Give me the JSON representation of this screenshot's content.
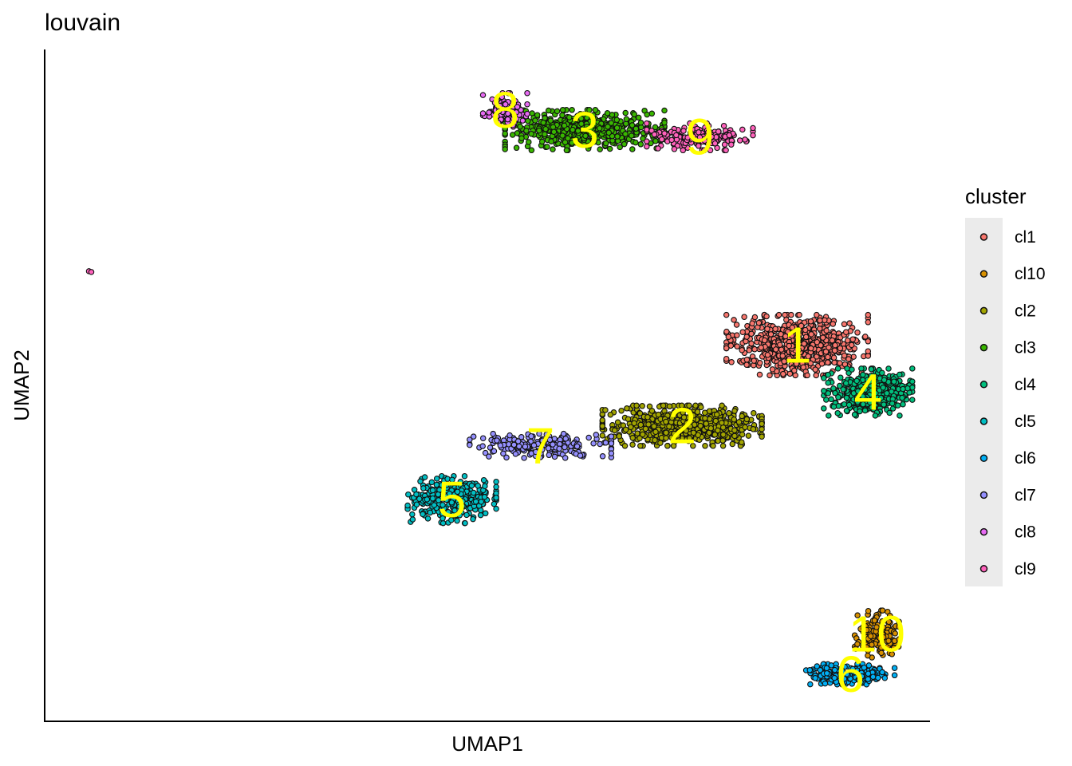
{
  "chart_data": {
    "type": "scatter",
    "title": "louvain",
    "xlabel": "UMAP1",
    "ylabel": "UMAP2",
    "xlim": [
      0,
      100
    ],
    "ylim": [
      0,
      100
    ],
    "grid": false,
    "legend": {
      "title": "cluster",
      "placement": "right",
      "entries": [
        {
          "name": "cl1",
          "color": "#F8766D"
        },
        {
          "name": "cl10",
          "color": "#D89000"
        },
        {
          "name": "cl2",
          "color": "#A3A500"
        },
        {
          "name": "cl3",
          "color": "#39B600"
        },
        {
          "name": "cl4",
          "color": "#00BF7D"
        },
        {
          "name": "cl5",
          "color": "#00BFC4"
        },
        {
          "name": "cl6",
          "color": "#00B0F6"
        },
        {
          "name": "cl7",
          "color": "#9590FF"
        },
        {
          "name": "cl8",
          "color": "#E76BF3"
        },
        {
          "name": "cl9",
          "color": "#FF62BC"
        }
      ]
    },
    "clusters": [
      {
        "name": "cl1",
        "label": "1",
        "color": "#F8766D",
        "center": [
          85,
          56
        ],
        "spread": [
          8,
          4.5
        ],
        "n": 700
      },
      {
        "name": "cl2",
        "label": "2",
        "color": "#A3A500",
        "center": [
          72,
          44
        ],
        "spread": [
          9,
          3
        ],
        "n": 650
      },
      {
        "name": "cl3",
        "label": "3",
        "color": "#39B600",
        "center": [
          61,
          88
        ],
        "spread": [
          9,
          3
        ],
        "n": 550
      },
      {
        "name": "cl4",
        "label": "4",
        "color": "#00BF7D",
        "center": [
          93,
          49
        ],
        "spread": [
          5,
          3.5
        ],
        "n": 420
      },
      {
        "name": "cl5",
        "label": "5",
        "color": "#00BFC4",
        "center": [
          46,
          33
        ],
        "spread": [
          5,
          3.5
        ],
        "n": 330
      },
      {
        "name": "cl6",
        "label": "6",
        "color": "#00B0F6",
        "center": [
          91,
          7
        ],
        "spread": [
          5,
          1.5
        ],
        "n": 260
      },
      {
        "name": "cl7",
        "label": "7",
        "color": "#9590FF",
        "center": [
          56,
          41
        ],
        "spread": [
          8,
          1.8
        ],
        "n": 220
      },
      {
        "name": "cl8",
        "label": "8",
        "color": "#E76BF3",
        "center": [
          52,
          91
        ],
        "spread": [
          2.5,
          2.5
        ],
        "n": 120
      },
      {
        "name": "cl9",
        "label": "9",
        "color": "#FF62BC",
        "center": [
          74,
          87
        ],
        "spread": [
          6,
          2
        ],
        "n": 180
      },
      {
        "name": "cl10",
        "label": "10",
        "color": "#D89000",
        "center": [
          94,
          13
        ],
        "spread": [
          2.5,
          3.5
        ],
        "n": 150
      }
    ],
    "outliers": [
      {
        "cluster": "cl9",
        "x": 5,
        "y": 67
      }
    ]
  }
}
